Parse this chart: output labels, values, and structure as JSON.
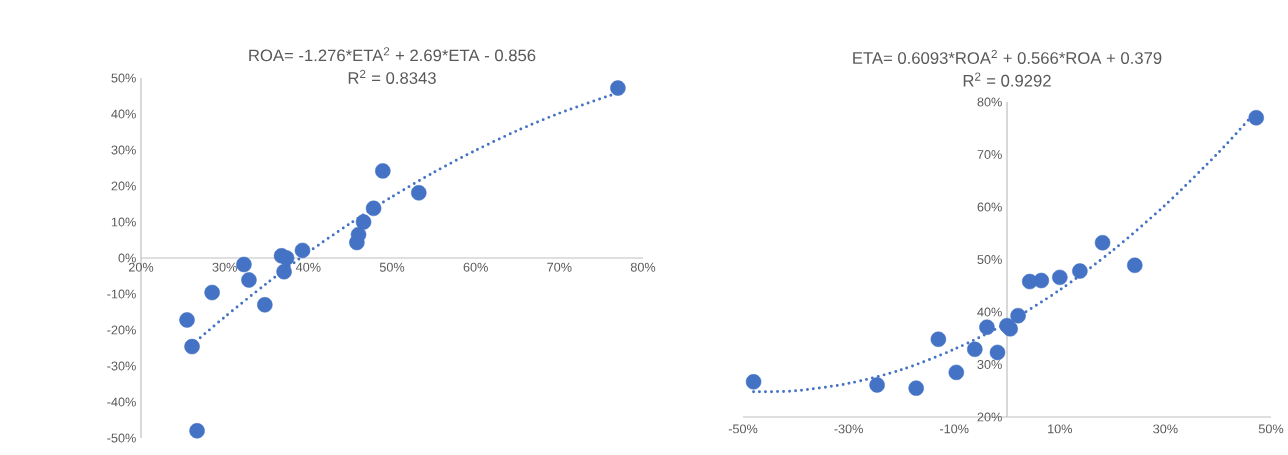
{
  "chart_data": [
    {
      "type": "scatter",
      "title": "ROA= -1.276*ETA$^{2}$ + 2.69*ETA - 0.856",
      "subtitle": "R$^{2}$ = 0.8343",
      "xlim": [
        20,
        80
      ],
      "ylim": [
        -50,
        50
      ],
      "xticks": [
        {
          "value": 20,
          "label": "20%"
        },
        {
          "value": 30,
          "label": "30%"
        },
        {
          "value": 40,
          "label": "40%"
        },
        {
          "value": 50,
          "label": "50%"
        },
        {
          "value": 60,
          "label": "60%"
        },
        {
          "value": 70,
          "label": "70%"
        },
        {
          "value": 80,
          "label": "80%"
        }
      ],
      "yticks": [
        {
          "value": -50,
          "label": "-50%"
        },
        {
          "value": -40,
          "label": "-40%"
        },
        {
          "value": -30,
          "label": "-30%"
        },
        {
          "value": -20,
          "label": "-20%"
        },
        {
          "value": -10,
          "label": "-10%"
        },
        {
          "value": 0,
          "label": "0%"
        },
        {
          "value": 10,
          "label": "10%"
        },
        {
          "value": 20,
          "label": "20%"
        },
        {
          "value": 30,
          "label": "30%"
        },
        {
          "value": 40,
          "label": "40%"
        },
        {
          "value": 50,
          "label": "50%"
        }
      ],
      "series": [
        {
          "color": "#4472c4",
          "marker": "circle",
          "x": [
            77.0,
            48.9,
            53.2,
            47.8,
            46.6,
            46.0,
            45.8,
            39.3,
            36.8,
            37.4,
            37.1,
            32.3,
            32.9,
            28.5,
            34.8,
            25.5,
            26.1,
            26.7
          ],
          "values": [
            47.2,
            24.2,
            18.1,
            13.8,
            10.0,
            6.5,
            4.3,
            2.1,
            0.6,
            0.0,
            -3.8,
            -1.8,
            -6.1,
            -9.6,
            -13.0,
            -17.2,
            -24.6,
            -48.0
          ]
        },
        {
          "type": "line",
          "color": "#4472c4",
          "marker": "none",
          "line_style": "dotted",
          "x": [
            26,
            30,
            35,
            40,
            45,
            50,
            55,
            60,
            65,
            70,
            77
          ],
          "values": [
            -24.3,
            -16.4,
            -7.1,
            1.6,
            9.6,
            17.0,
            23.8,
            29.9,
            35.4,
            40.2,
            45.9
          ]
        }
      ]
    },
    {
      "type": "scatter",
      "title": "ETA= 0.6093*ROA$^{2}$ + 0.566*ROA + 0.379",
      "subtitle": "R$^{2}$ = 0.9292",
      "xlim": [
        -50,
        50
      ],
      "ylim": [
        20,
        80
      ],
      "xticks": [
        {
          "value": -50,
          "label": "-50%"
        },
        {
          "value": -30,
          "label": "-30%"
        },
        {
          "value": -10,
          "label": "-10%"
        },
        {
          "value": 10,
          "label": "10%"
        },
        {
          "value": 30,
          "label": "30%"
        },
        {
          "value": 50,
          "label": "50%"
        }
      ],
      "yticks": [
        {
          "value": 20,
          "label": "20%"
        },
        {
          "value": 30,
          "label": "30%"
        },
        {
          "value": 40,
          "label": "40%"
        },
        {
          "value": 50,
          "label": "50%"
        },
        {
          "value": 60,
          "label": "60%"
        },
        {
          "value": 70,
          "label": "70%"
        },
        {
          "value": 80,
          "label": "80%"
        }
      ],
      "series": [
        {
          "color": "#4472c4",
          "marker": "circle",
          "x": [
            47.2,
            24.2,
            18.1,
            13.8,
            10.0,
            6.5,
            4.3,
            2.1,
            0.6,
            0.0,
            -3.8,
            -1.8,
            -6.1,
            -9.6,
            -13.0,
            -17.2,
            -24.6,
            -48.0
          ],
          "values": [
            77.0,
            48.9,
            53.2,
            47.8,
            46.6,
            46.0,
            45.8,
            39.3,
            36.8,
            37.4,
            37.1,
            32.3,
            32.9,
            28.5,
            34.8,
            25.5,
            26.1,
            26.7
          ]
        },
        {
          "type": "line",
          "color": "#4472c4",
          "marker": "none",
          "line_style": "dotted",
          "x": [
            -48,
            -40,
            -30,
            -20,
            -10,
            0,
            10,
            20,
            30,
            40,
            47
          ],
          "values": [
            24.8,
            25.0,
            26.4,
            29.0,
            32.9,
            37.9,
            44.2,
            51.7,
            60.4,
            70.3,
            78.0
          ]
        }
      ]
    }
  ]
}
